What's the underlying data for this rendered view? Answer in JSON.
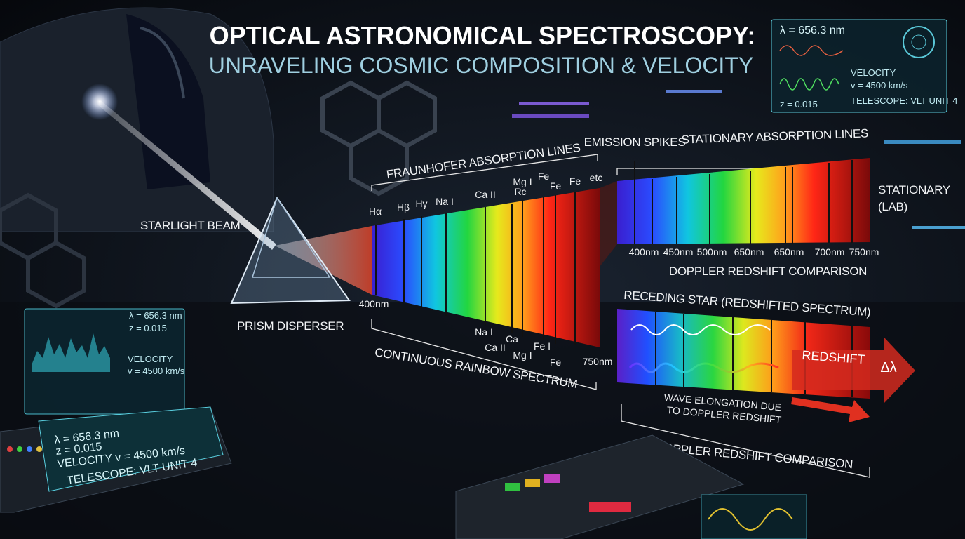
{
  "header": {
    "title": "OPTICAL ASTRONOMICAL SPECTROSCOPY:",
    "subtitle": "UNRAVELING COSMIC COMPOSITION & VELOCITY"
  },
  "top_panel": {
    "wavelength": "λ = 656.3 nm",
    "velocity_label": "VELOCITY",
    "velocity": "v = 4500 km/s",
    "redshift": "z = 0.015",
    "telescope": "TELESCOPE: VLT UNIT 4"
  },
  "labels": {
    "starlight_beam": "STARLIGHT BEAM",
    "prism_disperser": "PRISM DISPERSER"
  },
  "continuous_spectrum": {
    "heading": "FRAUNHOFER ABSORPTION LINES",
    "top_lines": [
      "Hα",
      "Hβ",
      "Hγ",
      "Na I",
      "Ca II",
      "Mg I",
      "Rc",
      "Fe",
      "Fe",
      "Fe",
      "etc"
    ],
    "start": "400nm",
    "end": "750nm",
    "bottom_lines": [
      "Na I",
      "Ca II",
      "Ca",
      "Mg I",
      "Fe I",
      "Fe"
    ],
    "caption": "CONTINUOUS RAINBOW SPECTRUM"
  },
  "stationary_spectrum": {
    "emission_heading": "EMISSION SPIKES",
    "absorption_heading": "STATIONARY ABSORPTION LINES",
    "label": [
      "STATIONARY",
      "(LAB)"
    ],
    "ticks": [
      "400nm",
      "450nm",
      "500nm",
      "650nm",
      "650nm",
      "700nm",
      "750nm"
    ],
    "caption": "DOPPLER REDSHIFT COMPARISON"
  },
  "receding_spectrum": {
    "heading": "RECEDING STAR (REDSHIFTED SPECTRUM)",
    "redshift": "REDSHIFT",
    "delta": "Δλ",
    "wave_note": [
      "WAVE ELONGATION DUE",
      "TO DOPPLER REDSHIFT"
    ],
    "caption": "DOPPLER REDSHIFT COMPARISON"
  },
  "left_panel": {
    "wavelength": "λ = 656.3 nm",
    "redshift": "z = 0.015",
    "velocity_label": "VELOCITY",
    "velocity": "v = 4500 km/s"
  },
  "console": {
    "wavelength": "λ = 656.3 nm",
    "redshift": "z = 0.015",
    "velocity": "VELOCITY v = 4500 km/s",
    "telescope": "TELESCOPE: VLT UNIT 4"
  }
}
